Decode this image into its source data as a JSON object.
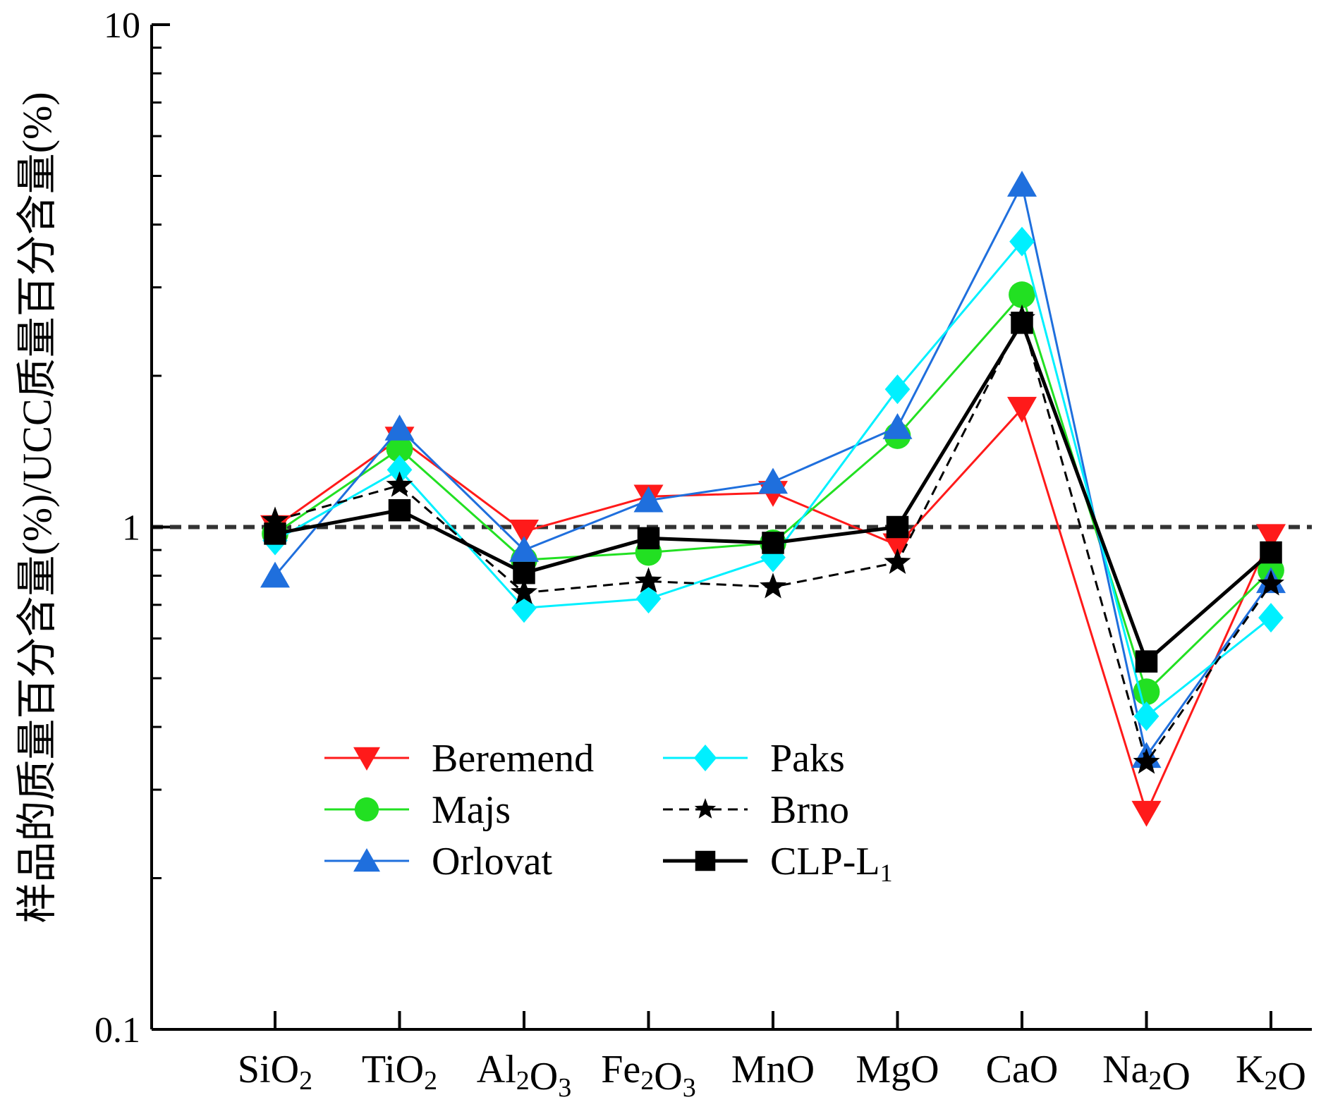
{
  "chart_data": {
    "type": "line",
    "title": "",
    "ylabel": "样品的质量百分含量(%)/UCC质量百分含量(%)",
    "xlabel": "",
    "yscale": "log",
    "ylim": [
      0.1,
      10
    ],
    "yticks": [
      {
        "value": 0.1,
        "label": "0.1"
      },
      {
        "value": 1,
        "label": "1"
      },
      {
        "value": 10,
        "label": "10"
      }
    ],
    "categories": [
      {
        "base": "SiO",
        "parts": [
          [
            "Si",
            false
          ],
          [
            "O",
            false
          ],
          [
            "2",
            true
          ]
        ]
      },
      {
        "base": "TiO",
        "parts": [
          [
            "Ti",
            false
          ],
          [
            "O",
            false
          ],
          [
            "2",
            true
          ]
        ]
      },
      {
        "base": "AlO",
        "parts": [
          [
            "Al",
            false
          ],
          [
            "2",
            true
          ],
          [
            "O",
            false
          ],
          [
            "3",
            true
          ]
        ]
      },
      {
        "base": "FeO",
        "parts": [
          [
            "Fe",
            false
          ],
          [
            "2",
            true
          ],
          [
            "O",
            false
          ],
          [
            "3",
            true
          ]
        ]
      },
      {
        "base": "MnO",
        "parts": [
          [
            "MnO",
            false
          ]
        ]
      },
      {
        "base": "MgO",
        "parts": [
          [
            "MgO",
            false
          ]
        ]
      },
      {
        "base": "CaO",
        "parts": [
          [
            "CaO",
            false
          ]
        ]
      },
      {
        "base": "NaO",
        "parts": [
          [
            "Na",
            false
          ],
          [
            "2",
            true
          ],
          [
            "O",
            false
          ]
        ]
      },
      {
        "base": "KO",
        "parts": [
          [
            "K",
            false
          ],
          [
            "2",
            true
          ],
          [
            "O",
            false
          ]
        ]
      }
    ],
    "reference_line": 1,
    "legend_position": "lower-center",
    "series": [
      {
        "name": "Beremend",
        "color": "#ff1a1a",
        "marker": "triangle-down",
        "dash": "solid",
        "values": [
          1.0,
          1.5,
          0.98,
          1.15,
          1.17,
          0.92,
          1.72,
          0.27,
          0.96
        ]
      },
      {
        "name": "Majs",
        "color": "#22e022",
        "marker": "circle",
        "dash": "solid",
        "values": [
          0.97,
          1.43,
          0.86,
          0.89,
          0.93,
          1.52,
          2.9,
          0.47,
          0.82
        ]
      },
      {
        "name": "Orlovat",
        "color": "#1f6fdd",
        "marker": "triangle-up",
        "dash": "solid",
        "values": [
          0.8,
          1.57,
          0.9,
          1.13,
          1.23,
          1.58,
          4.8,
          0.35,
          0.78
        ]
      },
      {
        "name": "Paks",
        "color": "#00f0ff",
        "marker": "diamond",
        "dash": "solid",
        "values": [
          0.94,
          1.3,
          0.69,
          0.72,
          0.87,
          1.88,
          3.7,
          0.42,
          0.66
        ]
      },
      {
        "name": "Brno",
        "color": "#000000",
        "marker": "star",
        "dash": "dashed",
        "values": [
          1.03,
          1.21,
          0.74,
          0.78,
          0.76,
          0.85,
          2.6,
          0.34,
          0.77
        ]
      },
      {
        "name": "CLP-L",
        "name_sub": "1",
        "color": "#000000",
        "marker": "square",
        "dash": "bold",
        "values": [
          0.97,
          1.08,
          0.81,
          0.95,
          0.93,
          1.0,
          2.55,
          0.54,
          0.89
        ]
      }
    ]
  }
}
